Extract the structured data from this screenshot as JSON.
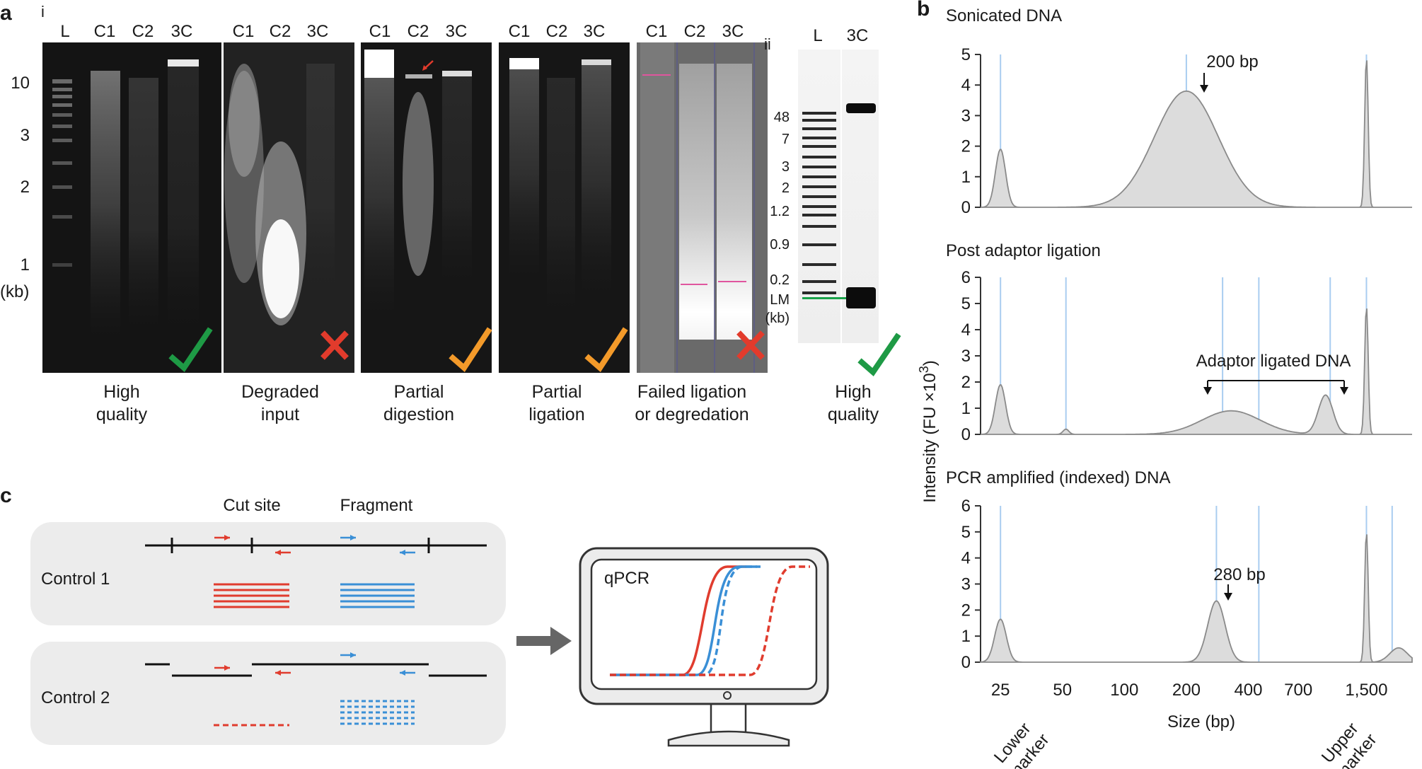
{
  "panel_a": {
    "label": "a",
    "sub_i": "i",
    "sub_ii": "ii",
    "kb_ticks": [
      "10",
      "3",
      "2",
      "1"
    ],
    "kb_unit": "(kb)",
    "gels": [
      {
        "lanes": [
          "L",
          "C1",
          "C2",
          "3C"
        ],
        "caption": [
          "High",
          "quality"
        ],
        "verdict": "check-green"
      },
      {
        "lanes": [
          "C1",
          "C2",
          "3C"
        ],
        "caption": [
          "Degraded",
          "input"
        ],
        "verdict": "cross-red"
      },
      {
        "lanes": [
          "C1",
          "C2",
          "3C"
        ],
        "caption": [
          "Partial",
          "digestion"
        ],
        "verdict": "check-orange"
      },
      {
        "lanes": [
          "C1",
          "C2",
          "3C"
        ],
        "caption": [
          "Partial",
          "ligation"
        ],
        "verdict": "check-orange"
      },
      {
        "lanes": [
          "C1",
          "C2",
          "3C"
        ],
        "caption": [
          "Failed ligation",
          "or degredation"
        ],
        "verdict": "cross-red"
      }
    ],
    "tapestation": {
      "lanes": [
        "L",
        "3C"
      ],
      "ticks": [
        "48",
        "7",
        "3",
        "2",
        "1.2",
        "0.9",
        "0.2",
        "LM",
        "(kb)"
      ],
      "caption": [
        "High",
        "quality"
      ],
      "verdict": "check-green"
    },
    "colors": {
      "check_green": "#1e9a45",
      "check_orange": "#f39a2a",
      "cross_red": "#e23b2c",
      "ladder_green": "#1aa34a",
      "pink_marker": "#e0559e"
    }
  },
  "panel_b": {
    "label": "b",
    "y_axis_label": "Intensity (FU ×10",
    "y_axis_sup": "3",
    "y_axis_close": ")",
    "x_axis_label": "Size (bp)",
    "x_ticks": [
      "25",
      "50",
      "100",
      "200",
      "400",
      "700",
      "1,500"
    ],
    "lower_marker": [
      "Lower",
      "marker"
    ],
    "upper_marker": [
      "Upper",
      "marker"
    ],
    "plots": [
      {
        "title": "Sonicated DNA",
        "annotation": "200 bp",
        "y_ticks": [
          "0",
          "1",
          "2",
          "3",
          "4",
          "5"
        ]
      },
      {
        "title": "Post adaptor ligation",
        "annotation": "Adaptor ligated DNA",
        "y_ticks": [
          "0",
          "1",
          "2",
          "3",
          "4",
          "5",
          "6"
        ]
      },
      {
        "title": "PCR amplified (indexed) DNA",
        "annotation": "280 bp",
        "y_ticks": [
          "0",
          "1",
          "2",
          "3",
          "4",
          "5",
          "6"
        ]
      }
    ]
  },
  "panel_c": {
    "label": "c",
    "cut_site": "Cut site",
    "fragment": "Fragment",
    "control1": "Control 1",
    "control2": "Control 2",
    "qpcr": "qPCR",
    "colors": {
      "red": "#e03c2e",
      "blue": "#3a8fd6",
      "box": "#ececec",
      "arrow": "#666666"
    }
  },
  "chart_data": [
    {
      "type": "area",
      "title": "Sonicated DNA",
      "xlabel": "Size (bp)",
      "ylabel": "Intensity (FU ×10^3)",
      "x_scale": "log",
      "xlim": [
        20,
        2500
      ],
      "ylim": [
        0,
        5
      ],
      "x_ticks": [
        25,
        50,
        100,
        200,
        400,
        700,
        1500
      ],
      "series": [
        {
          "x": [
            25,
            200,
            1500
          ],
          "y": [
            1.9,
            3.8,
            4.9
          ]
        }
      ],
      "annotations": [
        "200 bp"
      ],
      "grid": false
    },
    {
      "type": "area",
      "title": "Post adaptor ligation",
      "xlabel": "Size (bp)",
      "ylabel": "Intensity (FU ×10^3)",
      "x_scale": "log",
      "xlim": [
        20,
        2500
      ],
      "ylim": [
        0,
        6
      ],
      "x_ticks": [
        25,
        50,
        100,
        200,
        400,
        700,
        1500
      ],
      "series": [
        {
          "x": [
            25,
            52,
            280,
            430,
            950,
            1500
          ],
          "y": [
            1.9,
            0.2,
            0.9,
            0.9,
            1.5,
            4.9
          ]
        }
      ],
      "annotations": [
        "Adaptor ligated DNA"
      ],
      "grid": false
    },
    {
      "type": "area",
      "title": "PCR amplified (indexed) DNA",
      "xlabel": "Size (bp)",
      "ylabel": "Intensity (FU ×10^3)",
      "x_scale": "log",
      "xlim": [
        20,
        2500
      ],
      "ylim": [
        0,
        6
      ],
      "x_ticks": [
        25,
        50,
        100,
        200,
        400,
        700,
        1500
      ],
      "series": [
        {
          "x": [
            25,
            280,
            1500,
            2100
          ],
          "y": [
            1.65,
            2.35,
            5.0,
            0.6
          ]
        }
      ],
      "annotations": [
        "280 bp"
      ],
      "grid": false
    }
  ]
}
